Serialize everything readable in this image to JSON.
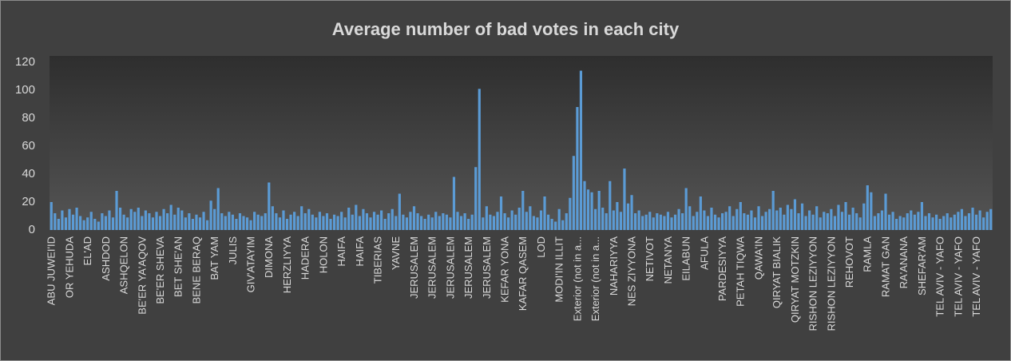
{
  "chart_data": {
    "type": "bar",
    "title": "Average number of bad votes in each city",
    "categories": [
      "ABU JUWEI'ID",
      null,
      null,
      null,
      null,
      "OR YEHUDA",
      null,
      null,
      null,
      null,
      "EL'AD",
      null,
      null,
      null,
      null,
      "ASHDOD",
      null,
      null,
      null,
      null,
      "ASHQELON",
      null,
      null,
      null,
      null,
      "BE'ER YA'AQOV",
      null,
      null,
      null,
      null,
      "BE'ER SHEVA",
      null,
      null,
      null,
      null,
      "BET SHE'AN",
      null,
      null,
      null,
      null,
      "BENE BERAQ",
      null,
      null,
      null,
      null,
      "BAT YAM",
      null,
      null,
      null,
      null,
      "JULIS",
      null,
      null,
      null,
      null,
      "GIV'ATAYIM",
      null,
      null,
      null,
      null,
      "DIMONA",
      null,
      null,
      null,
      null,
      "HERZLIYYA",
      null,
      null,
      null,
      null,
      "HADERA",
      null,
      null,
      null,
      null,
      "HOLON",
      null,
      null,
      null,
      null,
      "HAIFA",
      null,
      null,
      null,
      null,
      "HAIFA",
      null,
      null,
      null,
      null,
      "TIBERIAS",
      null,
      null,
      null,
      null,
      "YAVNE",
      null,
      null,
      null,
      null,
      "JERUSALEM",
      null,
      null,
      null,
      null,
      "JERUSALEM",
      null,
      null,
      null,
      null,
      "JERUSALEM",
      null,
      null,
      null,
      null,
      "JERUSALEM",
      null,
      null,
      null,
      null,
      "JERUSALEM",
      null,
      null,
      null,
      null,
      "KEFAR YONA",
      null,
      null,
      null,
      null,
      "KAFAR QASEM",
      null,
      null,
      null,
      null,
      "LOD",
      null,
      null,
      null,
      null,
      "MODI'IN ILLIT",
      null,
      null,
      null,
      null,
      "Exterior (not in a...",
      null,
      null,
      null,
      null,
      "Exterior (not in a...",
      null,
      null,
      null,
      null,
      "NAHARIYYA",
      null,
      null,
      null,
      null,
      "NES ZIYYONA",
      null,
      null,
      null,
      null,
      "NETIVOT",
      null,
      null,
      null,
      null,
      "NETANYA",
      null,
      null,
      null,
      null,
      "EILABUN",
      null,
      null,
      null,
      null,
      "AFULA",
      null,
      null,
      null,
      null,
      "PARDESIYYA",
      null,
      null,
      null,
      null,
      "PETAH TIQWA",
      null,
      null,
      null,
      null,
      "QAWA'IN",
      null,
      null,
      null,
      null,
      "QIRYAT BIALIK",
      null,
      null,
      null,
      null,
      "QIRYAT MOTZKIN",
      null,
      null,
      null,
      null,
      "RISHON LEZIYYON",
      null,
      null,
      null,
      null,
      "RISHON LEZIYYON",
      null,
      null,
      null,
      null,
      "REHOVOT",
      null,
      null,
      null,
      null,
      "RAMLA",
      null,
      null,
      null,
      null,
      "RAMAT GAN",
      null,
      null,
      null,
      null,
      "RA'ANANA",
      null,
      null,
      null,
      null,
      "SHEFAR'AM",
      null,
      null,
      null,
      null,
      "TEL AVIV - YAFO",
      null,
      null,
      null,
      null,
      "TEL AVIV - YAFO",
      null,
      null,
      null,
      null,
      "TEL AVIV - YAFO",
      null,
      null,
      null,
      null
    ],
    "values": [
      20,
      12,
      8,
      14,
      9,
      15,
      11,
      16,
      10,
      7,
      9,
      13,
      8,
      6,
      12,
      10,
      14,
      9,
      28,
      16,
      11,
      9,
      15,
      13,
      16,
      10,
      14,
      12,
      9,
      13,
      10,
      15,
      12,
      18,
      11,
      16,
      14,
      9,
      12,
      8,
      11,
      9,
      13,
      7,
      21,
      15,
      30,
      12,
      10,
      13,
      11,
      8,
      12,
      10,
      9,
      7,
      13,
      11,
      10,
      12,
      34,
      17,
      12,
      9,
      14,
      8,
      11,
      13,
      10,
      17,
      12,
      15,
      11,
      9,
      13,
      10,
      12,
      8,
      11,
      10,
      13,
      9,
      16,
      11,
      18,
      10,
      15,
      12,
      9,
      13,
      11,
      14,
      8,
      12,
      15,
      10,
      26,
      11,
      9,
      13,
      17,
      12,
      10,
      8,
      11,
      9,
      13,
      10,
      12,
      11,
      9,
      38,
      13,
      10,
      12,
      8,
      11,
      45,
      101,
      9,
      17,
      11,
      10,
      13,
      24,
      12,
      9,
      14,
      11,
      16,
      28,
      13,
      17,
      10,
      9,
      14,
      24,
      11,
      8,
      6,
      15,
      7,
      12,
      23,
      53,
      88,
      114,
      35,
      29,
      27,
      15,
      28,
      16,
      12,
      35,
      14,
      20,
      13,
      44,
      19,
      25,
      12,
      14,
      10,
      11,
      13,
      9,
      12,
      11,
      10,
      13,
      9,
      11,
      15,
      12,
      30,
      17,
      10,
      13,
      24,
      14,
      10,
      16,
      11,
      9,
      12,
      13,
      17,
      10,
      15,
      20,
      12,
      11,
      14,
      9,
      17,
      10,
      13,
      15,
      28,
      14,
      16,
      11,
      18,
      15,
      22,
      12,
      19,
      10,
      14,
      11,
      17,
      9,
      13,
      12,
      15,
      10,
      18,
      13,
      20,
      11,
      16,
      12,
      9,
      19,
      32,
      27,
      10,
      12,
      14,
      26,
      11,
      13,
      8,
      10,
      9,
      12,
      14,
      11,
      13,
      20,
      10,
      12,
      9,
      11,
      8,
      10,
      12,
      9,
      11,
      13,
      15,
      10,
      12,
      16,
      11,
      14,
      9,
      13,
      15
    ],
    "color": "#5b9bd5",
    "ylim": [
      0,
      120
    ],
    "yticks": [
      0,
      20,
      40,
      60,
      80,
      100,
      120
    ]
  }
}
